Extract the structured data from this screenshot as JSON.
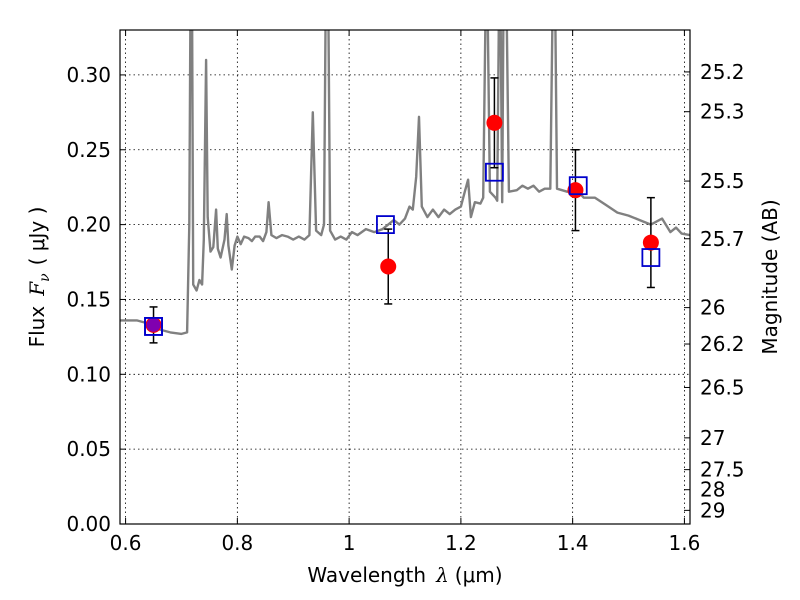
{
  "chart_data": {
    "type": "scatter",
    "xlabel": {
      "text": "Wavelength",
      "symbol": "λ",
      "unit": "(μm)"
    },
    "ylabel": {
      "text": "Flux",
      "symbol": "F",
      "subscript": "ν",
      "unit": "( μJy )"
    },
    "y2label": "Magnitude (AB)",
    "xlim": [
      0.59,
      1.61
    ],
    "ylim": [
      0.0,
      0.33
    ],
    "grid": true,
    "x_ticks": [
      {
        "value": 0.6,
        "label": "0.6"
      },
      {
        "value": 0.8,
        "label": "0.8"
      },
      {
        "value": 1.0,
        "label": "1"
      },
      {
        "value": 1.2,
        "label": "1.2"
      },
      {
        "value": 1.4,
        "label": "1.4"
      },
      {
        "value": 1.6,
        "label": "1.6"
      }
    ],
    "y_ticks": [
      {
        "value": 0.0,
        "label": "0.00"
      },
      {
        "value": 0.05,
        "label": "0.05"
      },
      {
        "value": 0.1,
        "label": "0.10"
      },
      {
        "value": 0.15,
        "label": "0.15"
      },
      {
        "value": 0.2,
        "label": "0.20"
      },
      {
        "value": 0.25,
        "label": "0.25"
      },
      {
        "value": 0.3,
        "label": "0.30"
      }
    ],
    "mag_ticks": [
      "25.2",
      "25.3",
      "25.5",
      "25.7",
      "26",
      "26.2",
      "26.5",
      "27",
      "27.5",
      "28",
      "29"
    ],
    "observed": {
      "color": "#ff0000",
      "points": [
        {
          "x": 0.65,
          "y": 0.133,
          "err": 0.012
        },
        {
          "x": 1.07,
          "y": 0.172,
          "err": 0.025
        },
        {
          "x": 1.26,
          "y": 0.268,
          "err": 0.03
        },
        {
          "x": 1.405,
          "y": 0.223,
          "err": 0.027
        },
        {
          "x": 1.54,
          "y": 0.188,
          "err": 0.03
        }
      ]
    },
    "model_photometry": {
      "color": "#0000cc",
      "points": [
        {
          "x": 0.65,
          "y": 0.132
        },
        {
          "x": 1.065,
          "y": 0.2
        },
        {
          "x": 1.26,
          "y": 0.235
        },
        {
          "x": 1.41,
          "y": 0.226
        },
        {
          "x": 1.54,
          "y": 0.178
        }
      ]
    },
    "model_spectrum": {
      "color": "#808080",
      "points": [
        [
          0.59,
          0.136
        ],
        [
          0.62,
          0.136
        ],
        [
          0.64,
          0.134
        ],
        [
          0.66,
          0.13
        ],
        [
          0.68,
          0.128
        ],
        [
          0.7,
          0.127
        ],
        [
          0.71,
          0.128
        ],
        [
          0.714,
          0.2
        ],
        [
          0.716,
          0.34
        ],
        [
          0.719,
          0.34
        ],
        [
          0.721,
          0.16
        ],
        [
          0.727,
          0.156
        ],
        [
          0.732,
          0.163
        ],
        [
          0.737,
          0.16
        ],
        [
          0.74,
          0.19
        ],
        [
          0.744,
          0.31
        ],
        [
          0.747,
          0.205
        ],
        [
          0.752,
          0.182
        ],
        [
          0.757,
          0.185
        ],
        [
          0.762,
          0.21
        ],
        [
          0.765,
          0.184
        ],
        [
          0.77,
          0.178
        ],
        [
          0.777,
          0.19
        ],
        [
          0.781,
          0.207
        ],
        [
          0.784,
          0.186
        ],
        [
          0.79,
          0.17
        ],
        [
          0.795,
          0.186
        ],
        [
          0.8,
          0.192
        ],
        [
          0.806,
          0.187
        ],
        [
          0.812,
          0.192
        ],
        [
          0.82,
          0.191
        ],
        [
          0.826,
          0.189
        ],
        [
          0.832,
          0.192
        ],
        [
          0.84,
          0.192
        ],
        [
          0.846,
          0.189
        ],
        [
          0.852,
          0.195
        ],
        [
          0.856,
          0.215
        ],
        [
          0.861,
          0.193
        ],
        [
          0.87,
          0.191
        ],
        [
          0.88,
          0.193
        ],
        [
          0.89,
          0.192
        ],
        [
          0.9,
          0.19
        ],
        [
          0.91,
          0.192
        ],
        [
          0.92,
          0.19
        ],
        [
          0.929,
          0.193
        ],
        [
          0.935,
          0.275
        ],
        [
          0.941,
          0.196
        ],
        [
          0.95,
          0.193
        ],
        [
          0.955,
          0.2
        ],
        [
          0.958,
          0.34
        ],
        [
          0.963,
          0.34
        ],
        [
          0.966,
          0.196
        ],
        [
          0.975,
          0.19
        ],
        [
          0.985,
          0.192
        ],
        [
          0.995,
          0.19
        ],
        [
          1.005,
          0.195
        ],
        [
          1.015,
          0.193
        ],
        [
          1.03,
          0.197
        ],
        [
          1.045,
          0.195
        ],
        [
          1.06,
          0.197
        ],
        [
          1.07,
          0.2
        ],
        [
          1.08,
          0.203
        ],
        [
          1.09,
          0.2
        ],
        [
          1.1,
          0.204
        ],
        [
          1.108,
          0.212
        ],
        [
          1.114,
          0.21
        ],
        [
          1.12,
          0.232
        ],
        [
          1.125,
          0.272
        ],
        [
          1.13,
          0.212
        ],
        [
          1.14,
          0.205
        ],
        [
          1.15,
          0.21
        ],
        [
          1.16,
          0.205
        ],
        [
          1.17,
          0.21
        ],
        [
          1.18,
          0.207
        ],
        [
          1.19,
          0.21
        ],
        [
          1.2,
          0.212
        ],
        [
          1.207,
          0.222
        ],
        [
          1.213,
          0.23
        ],
        [
          1.218,
          0.205
        ],
        [
          1.225,
          0.215
        ],
        [
          1.235,
          0.214
        ],
        [
          1.24,
          0.218
        ],
        [
          1.244,
          0.34
        ],
        [
          1.248,
          0.34
        ],
        [
          1.252,
          0.222
        ],
        [
          1.262,
          0.218
        ],
        [
          1.265,
          0.216
        ],
        [
          1.268,
          0.34
        ],
        [
          1.271,
          0.34
        ],
        [
          1.274,
          0.215
        ],
        [
          1.276,
          0.34
        ],
        [
          1.282,
          0.34
        ],
        [
          1.286,
          0.222
        ],
        [
          1.3,
          0.223
        ],
        [
          1.31,
          0.226
        ],
        [
          1.32,
          0.224
        ],
        [
          1.33,
          0.226
        ],
        [
          1.34,
          0.222
        ],
        [
          1.35,
          0.224
        ],
        [
          1.36,
          0.224
        ],
        [
          1.364,
          0.34
        ],
        [
          1.369,
          0.34
        ],
        [
          1.372,
          0.224
        ],
        [
          1.39,
          0.222
        ],
        [
          1.41,
          0.222
        ],
        [
          1.42,
          0.218
        ],
        [
          1.44,
          0.218
        ],
        [
          1.46,
          0.213
        ],
        [
          1.48,
          0.208
        ],
        [
          1.5,
          0.206
        ],
        [
          1.52,
          0.203
        ],
        [
          1.54,
          0.2
        ],
        [
          1.56,
          0.204
        ],
        [
          1.575,
          0.195
        ],
        [
          1.585,
          0.198
        ],
        [
          1.595,
          0.194
        ],
        [
          1.61,
          0.193
        ]
      ]
    }
  }
}
